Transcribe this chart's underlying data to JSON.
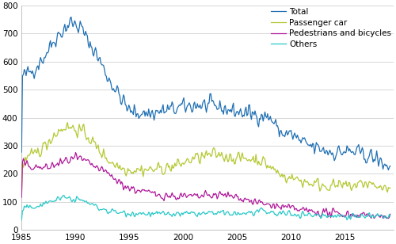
{
  "title": "",
  "xlabel": "",
  "ylabel": "",
  "xlim": [
    1985.0,
    2019.5
  ],
  "ylim": [
    0,
    800
  ],
  "yticks": [
    0,
    100,
    200,
    300,
    400,
    500,
    600,
    700,
    800
  ],
  "xticks": [
    1985,
    1990,
    1995,
    2000,
    2005,
    2010,
    2015
  ],
  "colors": {
    "Total": "#2070b4",
    "Passenger car": "#b5c832",
    "Pedestrians and bicycles": "#b0189a",
    "Others": "#28c8c8"
  },
  "legend_labels": [
    "Total",
    "Passenger car",
    "Pedestrians and bicycles",
    "Others"
  ],
  "background_color": "#ffffff",
  "grid_color": "#d0d0d0",
  "linewidth": 0.9
}
